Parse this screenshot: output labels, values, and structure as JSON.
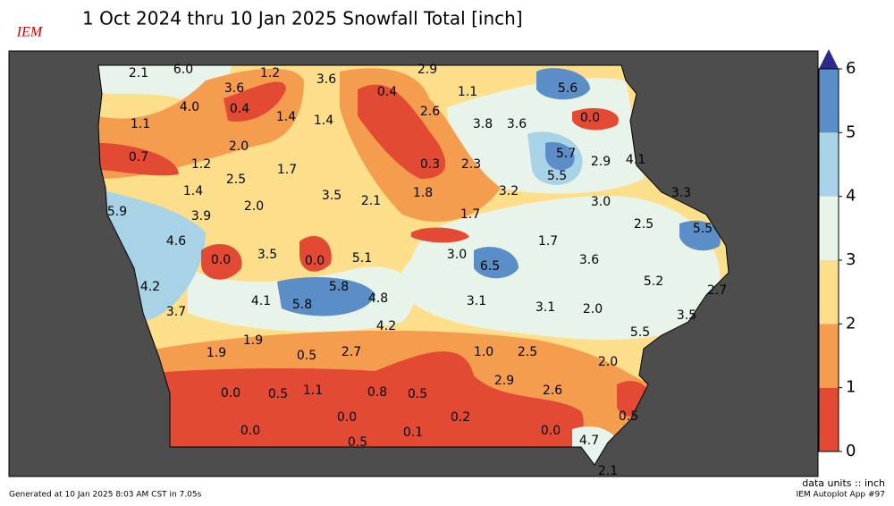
{
  "header": {
    "logo": "IEM",
    "title": "1 Oct 2024 thru 10 Jan 2025 Snowfall Total [inch]"
  },
  "map": {
    "labels": [
      "2.1",
      "6.0",
      "1.2",
      "3.6",
      "2.9",
      "3.6",
      "0.4",
      "1.1",
      "5.6",
      "4.0",
      "0.4",
      "1.4",
      "1.4",
      "2.6",
      "3.8",
      "3.6",
      "0.0",
      "1.1",
      "2.0",
      "5.7",
      "2.9",
      "4.1",
      "0.7",
      "1.2",
      "1.7",
      "0.3",
      "2.3",
      "5.5",
      "2.5",
      "1.4",
      "3.5",
      "2.1",
      "1.8",
      "3.2",
      "3.0",
      "3.3",
      "5.9",
      "2.0",
      "3.9",
      "1.7",
      "2.5",
      "5.5",
      "4.6",
      "1.7",
      "0.0",
      "3.5",
      "0.0",
      "5.1",
      "3.0",
      "6.5",
      "3.6",
      "4.2",
      "5.8",
      "5.2",
      "2.7",
      "4.1",
      "4.8",
      "3.1",
      "5.8",
      "3.1",
      "2.0",
      "3.7",
      "3.5",
      "4.2",
      "5.5",
      "1.9",
      "1.9",
      "0.5",
      "2.7",
      "1.0",
      "2.5",
      "2.0",
      "2.9",
      "2.6",
      "0.0",
      "0.5",
      "1.1",
      "0.8",
      "0.5",
      "0.0",
      "0.2",
      "0.5",
      "0.0",
      "0.1",
      "0.0",
      "4.7",
      "0.5",
      "2.1"
    ]
  },
  "colorbar": {
    "ticks": [
      0,
      1,
      2,
      3,
      4,
      5,
      6
    ],
    "colors": [
      "#e34a33",
      "#f59d4f",
      "#fddf8b",
      "#e8f4ea",
      "#a8d3e6",
      "#5b8ec6"
    ],
    "extend_color": "#2c2a8c"
  },
  "footer": {
    "units": "data units :: inch",
    "generated": "Generated at 10 Jan 2025 8:03 AM CST in 7.05s",
    "app": "IEM Autoplot App #97"
  }
}
